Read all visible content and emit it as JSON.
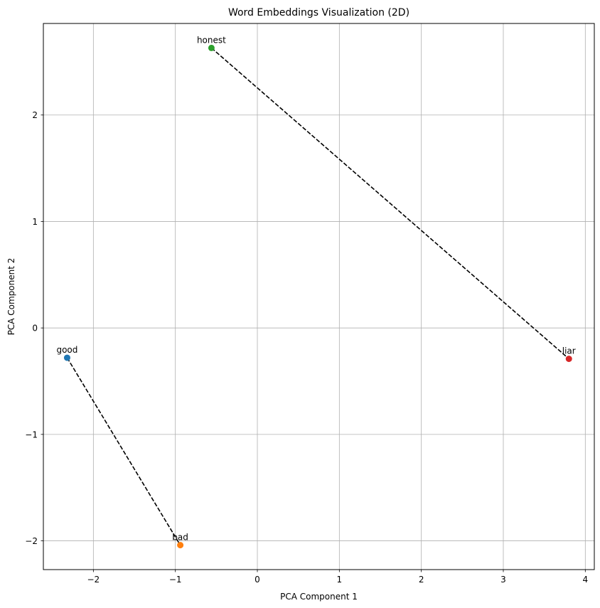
{
  "chart_data": {
    "type": "scatter",
    "title": "Word Embeddings Visualization (2D)",
    "xlabel": "PCA Component 1",
    "ylabel": "PCA Component 2",
    "xlim": [
      -2.61,
      4.11
    ],
    "ylim": [
      -2.27,
      2.86
    ],
    "xticks": [
      -2,
      -1,
      0,
      1,
      2,
      3,
      4
    ],
    "yticks": [
      -2,
      -1,
      0,
      1,
      2
    ],
    "xtick_labels": [
      "−2",
      "−1",
      "0",
      "1",
      "2",
      "3",
      "4"
    ],
    "ytick_labels": [
      "−2",
      "−1",
      "0",
      "1",
      "2"
    ],
    "grid": true,
    "points": [
      {
        "word": "good",
        "x": -2.32,
        "y": -0.28,
        "color": "#1f77b4"
      },
      {
        "word": "bad",
        "x": -0.94,
        "y": -2.04,
        "color": "#ff7f0e"
      },
      {
        "word": "honest",
        "x": -0.56,
        "y": 2.63,
        "color": "#2ca02c"
      },
      {
        "word": "liar",
        "x": 3.8,
        "y": -0.29,
        "color": "#d62728"
      }
    ],
    "pairs": [
      {
        "from": "good",
        "to": "bad",
        "style": "dashed",
        "color": "#000000"
      },
      {
        "from": "honest",
        "to": "liar",
        "style": "dashed",
        "color": "#000000"
      }
    ]
  }
}
